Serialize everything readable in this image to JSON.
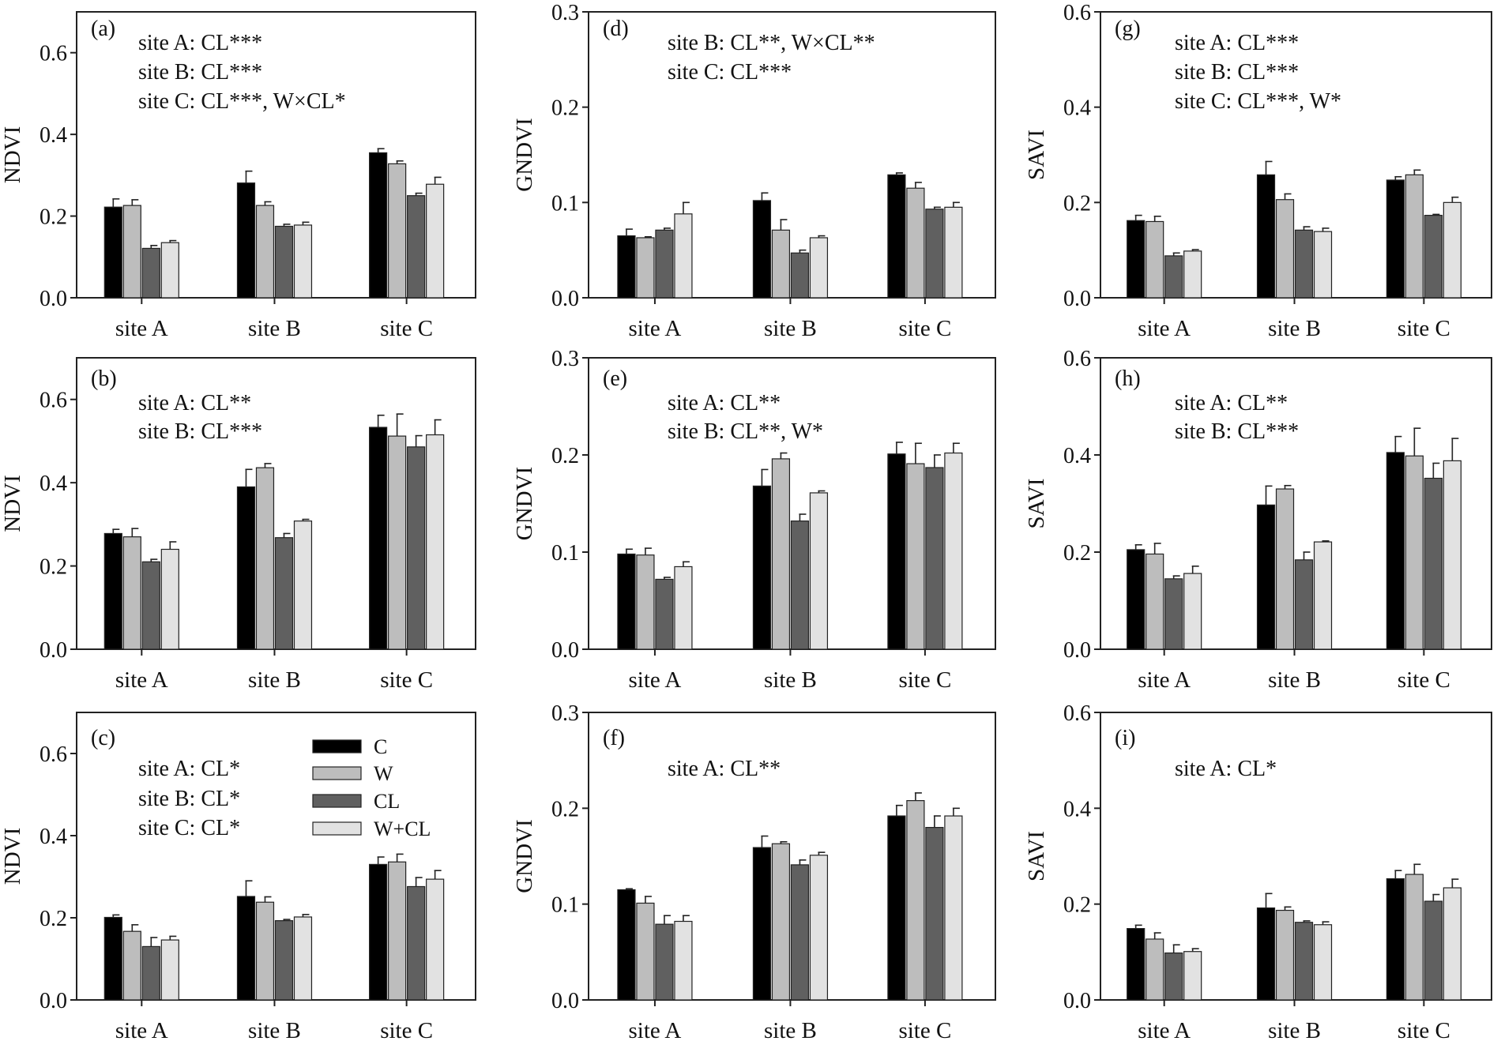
{
  "legend": [
    {
      "name": "C",
      "color": "#000000"
    },
    {
      "name": "W",
      "color": "#bdbdbd"
    },
    {
      "name": "CL",
      "color": "#606060"
    },
    {
      "name": "W+CL",
      "color": "#e2e2e2"
    }
  ],
  "chart_data": [
    {
      "type": "bar",
      "panel": "(a)",
      "ylabel": "NDVI",
      "ylim": [
        0,
        0.7
      ],
      "yticks": [
        "0.0",
        "0.2",
        "0.4",
        "0.6"
      ],
      "categories": [
        "site A",
        "site B",
        "site C"
      ],
      "annotations": [
        "site A: CL***",
        "site B: CL***",
        "site C: CL***, W×CL*"
      ],
      "series": [
        {
          "name": "C",
          "values": [
            0.222,
            0.281,
            0.355
          ],
          "se": [
            0.02,
            0.029,
            0.01
          ]
        },
        {
          "name": "W",
          "values": [
            0.226,
            0.226,
            0.328
          ],
          "se": [
            0.014,
            0.009,
            0.007
          ]
        },
        {
          "name": "CL",
          "values": [
            0.121,
            0.175,
            0.25
          ],
          "se": [
            0.007,
            0.005,
            0.006
          ]
        },
        {
          "name": "W+CL",
          "values": [
            0.135,
            0.178,
            0.278
          ],
          "se": [
            0.005,
            0.007,
            0.017
          ]
        }
      ]
    },
    {
      "type": "bar",
      "panel": "(b)",
      "ylabel": "NDVI",
      "ylim": [
        0,
        0.7
      ],
      "yticks": [
        "0.0",
        "0.2",
        "0.4",
        "0.6"
      ],
      "categories": [
        "site A",
        "site B",
        "site C"
      ],
      "annotations": [
        "site A: CL**",
        "site B: CL***"
      ],
      "series": [
        {
          "name": "C",
          "values": [
            0.278,
            0.39,
            0.533
          ],
          "se": [
            0.01,
            0.042,
            0.029
          ]
        },
        {
          "name": "W",
          "values": [
            0.27,
            0.436,
            0.512
          ],
          "se": [
            0.02,
            0.01,
            0.053
          ]
        },
        {
          "name": "CL",
          "values": [
            0.21,
            0.268,
            0.486
          ],
          "se": [
            0.006,
            0.01,
            0.027
          ]
        },
        {
          "name": "W+CL",
          "values": [
            0.24,
            0.308,
            0.515
          ],
          "se": [
            0.018,
            0.004,
            0.036
          ]
        }
      ]
    },
    {
      "type": "bar",
      "panel": "(c)",
      "ylabel": "NDVI",
      "ylim": [
        0,
        0.7
      ],
      "yticks": [
        "0.0",
        "0.2",
        "0.4",
        "0.6"
      ],
      "categories": [
        "site A",
        "site B",
        "site C"
      ],
      "annotations": [
        "site A: CL*",
        "site B: CL*",
        "site C: CL*"
      ],
      "series": [
        {
          "name": "C",
          "values": [
            0.201,
            0.252,
            0.33
          ],
          "se": [
            0.006,
            0.038,
            0.018
          ]
        },
        {
          "name": "W",
          "values": [
            0.167,
            0.238,
            0.336
          ],
          "se": [
            0.016,
            0.013,
            0.019
          ]
        },
        {
          "name": "CL",
          "values": [
            0.13,
            0.193,
            0.276
          ],
          "se": [
            0.022,
            0.003,
            0.022
          ]
        },
        {
          "name": "W+CL",
          "values": [
            0.146,
            0.202,
            0.294
          ],
          "se": [
            0.009,
            0.006,
            0.021
          ]
        }
      ]
    },
    {
      "type": "bar",
      "panel": "(d)",
      "ylabel": "GNDVI",
      "ylim": [
        0,
        0.3
      ],
      "yticks": [
        "0.0",
        "0.1",
        "0.2",
        "0.3"
      ],
      "categories": [
        "site A",
        "site B",
        "site C"
      ],
      "annotations": [
        "site B: CL**,  W×CL**",
        "site C: CL***"
      ],
      "series": [
        {
          "name": "C",
          "values": [
            0.065,
            0.102,
            0.129
          ],
          "se": [
            0.007,
            0.008,
            0.002
          ]
        },
        {
          "name": "W",
          "values": [
            0.063,
            0.071,
            0.115
          ],
          "se": [
            0.001,
            0.011,
            0.006
          ]
        },
        {
          "name": "CL",
          "values": [
            0.071,
            0.047,
            0.093
          ],
          "se": [
            0.002,
            0.003,
            0.002
          ]
        },
        {
          "name": "W+CL",
          "values": [
            0.088,
            0.063,
            0.095
          ],
          "se": [
            0.012,
            0.002,
            0.005
          ]
        }
      ]
    },
    {
      "type": "bar",
      "panel": "(e)",
      "ylabel": "GNDVI",
      "ylim": [
        0,
        0.3
      ],
      "yticks": [
        "0.0",
        "0.1",
        "0.2",
        "0.3"
      ],
      "categories": [
        "site A",
        "site B",
        "site C"
      ],
      "annotations": [
        "site A: CL**",
        "site B: CL**, W*"
      ],
      "series": [
        {
          "name": "C",
          "values": [
            0.098,
            0.168,
            0.201
          ],
          "se": [
            0.005,
            0.017,
            0.012
          ]
        },
        {
          "name": "W",
          "values": [
            0.097,
            0.196,
            0.191
          ],
          "se": [
            0.007,
            0.006,
            0.021
          ]
        },
        {
          "name": "CL",
          "values": [
            0.072,
            0.132,
            0.187
          ],
          "se": [
            0.002,
            0.007,
            0.013
          ]
        },
        {
          "name": "W+CL",
          "values": [
            0.085,
            0.161,
            0.202
          ],
          "se": [
            0.005,
            0.002,
            0.01
          ]
        }
      ]
    },
    {
      "type": "bar",
      "panel": "(f)",
      "ylabel": "GNDVI",
      "ylim": [
        0,
        0.3
      ],
      "yticks": [
        "0.0",
        "0.1",
        "0.2",
        "0.3"
      ],
      "categories": [
        "site A",
        "site B",
        "site C"
      ],
      "annotations": [
        "site A: CL**"
      ],
      "series": [
        {
          "name": "C",
          "values": [
            0.115,
            0.159,
            0.192
          ],
          "se": [
            0.001,
            0.012,
            0.011
          ]
        },
        {
          "name": "W",
          "values": [
            0.101,
            0.163,
            0.208
          ],
          "se": [
            0.007,
            0.002,
            0.008
          ]
        },
        {
          "name": "CL",
          "values": [
            0.079,
            0.141,
            0.18
          ],
          "se": [
            0.009,
            0.005,
            0.012
          ]
        },
        {
          "name": "W+CL",
          "values": [
            0.082,
            0.151,
            0.192
          ],
          "se": [
            0.006,
            0.003,
            0.008
          ]
        }
      ]
    },
    {
      "type": "bar",
      "panel": "(g)",
      "ylabel": "SAVI",
      "ylim": [
        0,
        0.6
      ],
      "yticks": [
        "0.0",
        "0.2",
        "0.4",
        "0.6"
      ],
      "categories": [
        "site A",
        "site B",
        "site C"
      ],
      "annotations": [
        "site A: CL***",
        "site B: CL***",
        "site C: CL***, W*"
      ],
      "series": [
        {
          "name": "C",
          "values": [
            0.162,
            0.258,
            0.247
          ],
          "se": [
            0.011,
            0.028,
            0.007
          ]
        },
        {
          "name": "W",
          "values": [
            0.16,
            0.206,
            0.258
          ],
          "se": [
            0.011,
            0.012,
            0.01
          ]
        },
        {
          "name": "CL",
          "values": [
            0.088,
            0.142,
            0.173
          ],
          "se": [
            0.006,
            0.007,
            0.002
          ]
        },
        {
          "name": "W+CL",
          "values": [
            0.098,
            0.139,
            0.2
          ],
          "se": [
            0.003,
            0.007,
            0.011
          ]
        }
      ]
    },
    {
      "type": "bar",
      "panel": "(h)",
      "ylabel": "SAVI",
      "ylim": [
        0,
        0.6
      ],
      "yticks": [
        "0.0",
        "0.2",
        "0.4",
        "0.6"
      ],
      "categories": [
        "site A",
        "site B",
        "site C"
      ],
      "annotations": [
        "site A: CL**",
        "site B: CL***"
      ],
      "series": [
        {
          "name": "C",
          "values": [
            0.205,
            0.297,
            0.405
          ],
          "se": [
            0.01,
            0.039,
            0.033
          ]
        },
        {
          "name": "W",
          "values": [
            0.196,
            0.33,
            0.398
          ],
          "se": [
            0.022,
            0.007,
            0.057
          ]
        },
        {
          "name": "CL",
          "values": [
            0.145,
            0.184,
            0.352
          ],
          "se": [
            0.006,
            0.016,
            0.031
          ]
        },
        {
          "name": "W+CL",
          "values": [
            0.156,
            0.221,
            0.388
          ],
          "se": [
            0.015,
            0.002,
            0.046
          ]
        }
      ]
    },
    {
      "type": "bar",
      "panel": "(i)",
      "ylabel": "SAVI",
      "ylim": [
        0,
        0.6
      ],
      "yticks": [
        "0.0",
        "0.2",
        "0.4",
        "0.6"
      ],
      "categories": [
        "site A",
        "site B",
        "site C"
      ],
      "annotations": [
        "site A: CL*"
      ],
      "series": [
        {
          "name": "C",
          "values": [
            0.149,
            0.192,
            0.253
          ],
          "se": [
            0.007,
            0.03,
            0.017
          ]
        },
        {
          "name": "W",
          "values": [
            0.127,
            0.187,
            0.262
          ],
          "se": [
            0.013,
            0.007,
            0.021
          ]
        },
        {
          "name": "CL",
          "values": [
            0.098,
            0.162,
            0.206
          ],
          "se": [
            0.017,
            0.003,
            0.014
          ]
        },
        {
          "name": "W+CL",
          "values": [
            0.101,
            0.157,
            0.234
          ],
          "se": [
            0.006,
            0.006,
            0.018
          ]
        }
      ]
    }
  ]
}
